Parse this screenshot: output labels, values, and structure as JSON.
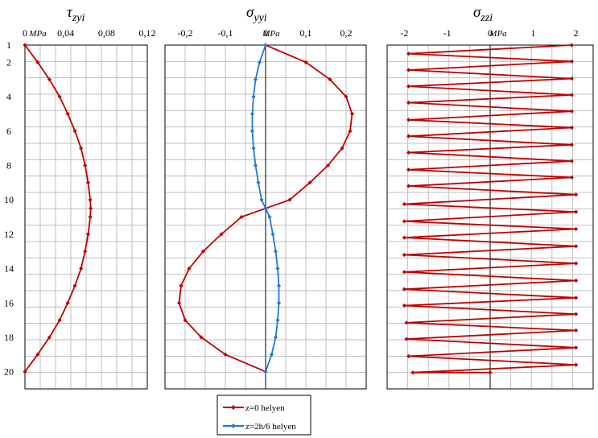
{
  "chart_data": [
    {
      "type": "line",
      "title": "τ",
      "title_sub": "zyi",
      "unit": "MPa",
      "xlim": [
        0,
        0.12
      ],
      "x_ticks": [
        "0",
        "0,04",
        "0,08",
        "0,12"
      ],
      "ylim": [
        1,
        21
      ],
      "y_ticks": [
        "1",
        "2",
        "4",
        "6",
        "8",
        "10",
        "12",
        "14",
        "16",
        "18",
        "20"
      ],
      "grid": true,
      "series": [
        {
          "name": "z=0 helyen",
          "color": "#c00000",
          "points": [
            [
              0.0,
              1
            ],
            [
              0.0125,
              2
            ],
            [
              0.024,
              3
            ],
            [
              0.034,
              4
            ],
            [
              0.042,
              5
            ],
            [
              0.049,
              6
            ],
            [
              0.055,
              7
            ],
            [
              0.059,
              8
            ],
            [
              0.062,
              9
            ],
            [
              0.064,
              10
            ],
            [
              0.0645,
              10.5
            ],
            [
              0.064,
              11
            ],
            [
              0.062,
              12
            ],
            [
              0.059,
              13
            ],
            [
              0.055,
              14
            ],
            [
              0.049,
              15
            ],
            [
              0.042,
              16
            ],
            [
              0.034,
              17
            ],
            [
              0.024,
              18
            ],
            [
              0.0125,
              19
            ],
            [
              0.0,
              20
            ]
          ]
        }
      ]
    },
    {
      "type": "line",
      "title": "σ",
      "title_sub": "yyi",
      "unit": "MPa",
      "xlim": [
        -0.25,
        0.25
      ],
      "x_ticks": [
        "-0,2",
        "-0,1",
        "0",
        "0,1",
        "0,2"
      ],
      "ylim": [
        1,
        21
      ],
      "grid": true,
      "series": [
        {
          "name": "z=0 helyen",
          "color": "#c00000",
          "points": [
            [
              0.0,
              1
            ],
            [
              0.1,
              2
            ],
            [
              0.16,
              3
            ],
            [
              0.2,
              4
            ],
            [
              0.215,
              5
            ],
            [
              0.21,
              6
            ],
            [
              0.19,
              7
            ],
            [
              0.155,
              8
            ],
            [
              0.11,
              9
            ],
            [
              0.06,
              10
            ],
            [
              0.0,
              10.5
            ],
            [
              -0.06,
              11
            ],
            [
              -0.11,
              12
            ],
            [
              -0.155,
              13
            ],
            [
              -0.19,
              14
            ],
            [
              -0.21,
              15
            ],
            [
              -0.215,
              16
            ],
            [
              -0.2,
              17
            ],
            [
              -0.16,
              18
            ],
            [
              -0.1,
              19
            ],
            [
              0.0,
              20
            ]
          ]
        },
        {
          "name": "z=2h/6 helyen",
          "color": "#1f7ad1",
          "points": [
            [
              0.0,
              1
            ],
            [
              -0.015,
              2
            ],
            [
              -0.025,
              3
            ],
            [
              -0.03,
              4
            ],
            [
              -0.033,
              5
            ],
            [
              -0.033,
              6
            ],
            [
              -0.03,
              7
            ],
            [
              -0.025,
              8
            ],
            [
              -0.018,
              9
            ],
            [
              -0.01,
              10
            ],
            [
              0.0,
              10.5
            ],
            [
              0.01,
              11
            ],
            [
              0.018,
              12
            ],
            [
              0.025,
              13
            ],
            [
              0.03,
              14
            ],
            [
              0.033,
              15
            ],
            [
              0.033,
              16
            ],
            [
              0.03,
              17
            ],
            [
              0.025,
              18
            ],
            [
              0.015,
              19
            ],
            [
              0.0,
              20
            ]
          ]
        }
      ]
    },
    {
      "type": "line",
      "title": "σ",
      "title_sub": "zzi",
      "unit": "MPa",
      "xlim": [
        -2.4,
        2.4
      ],
      "x_ticks": [
        "-2",
        "-1",
        "0",
        "1",
        "2"
      ],
      "ylim": [
        1,
        21
      ],
      "grid": true,
      "series": [
        {
          "name": "z=0 helyen",
          "color": "#c00000",
          "points": [
            [
              1.9,
              1
            ],
            [
              -1.9,
              1.5
            ],
            [
              1.9,
              1.95
            ],
            [
              -1.9,
              2.45
            ],
            [
              1.9,
              2.95
            ],
            [
              -1.9,
              3.4
            ],
            [
              1.9,
              3.9
            ],
            [
              -1.9,
              4.35
            ],
            [
              1.9,
              4.85
            ],
            [
              -1.9,
              5.35
            ],
            [
              1.9,
              5.8
            ],
            [
              -1.9,
              6.3
            ],
            [
              1.9,
              6.8
            ],
            [
              -1.9,
              7.25
            ],
            [
              1.9,
              7.75
            ],
            [
              -1.9,
              8.25
            ],
            [
              1.9,
              8.7
            ],
            [
              -1.9,
              9.2
            ],
            [
              2.0,
              9.7
            ],
            [
              -2.0,
              10.25
            ],
            [
              2.0,
              10.7
            ],
            [
              -2.0,
              11.25
            ],
            [
              2.0,
              11.7
            ],
            [
              -2.0,
              12.2
            ],
            [
              2.0,
              12.7
            ],
            [
              -2.0,
              13.2
            ],
            [
              2.0,
              13.7
            ],
            [
              -2.0,
              14.2
            ],
            [
              2.0,
              14.7
            ],
            [
              -2.0,
              15.2
            ],
            [
              2.0,
              15.7
            ],
            [
              -2.0,
              16.15
            ],
            [
              2.0,
              16.65
            ],
            [
              -1.95,
              17.15
            ],
            [
              2.0,
              17.6
            ],
            [
              -1.95,
              18.1
            ],
            [
              2.0,
              18.6
            ],
            [
              -1.9,
              19.1
            ],
            [
              2.0,
              19.6
            ],
            [
              -1.8,
              20.05
            ],
            [
              0.0,
              20.05
            ]
          ]
        }
      ]
    }
  ],
  "legend": [
    {
      "label": "z=0 helyen",
      "color": "#c00000"
    },
    {
      "label": "z=2h/6 helyen",
      "color": "#1f7ad1"
    }
  ]
}
